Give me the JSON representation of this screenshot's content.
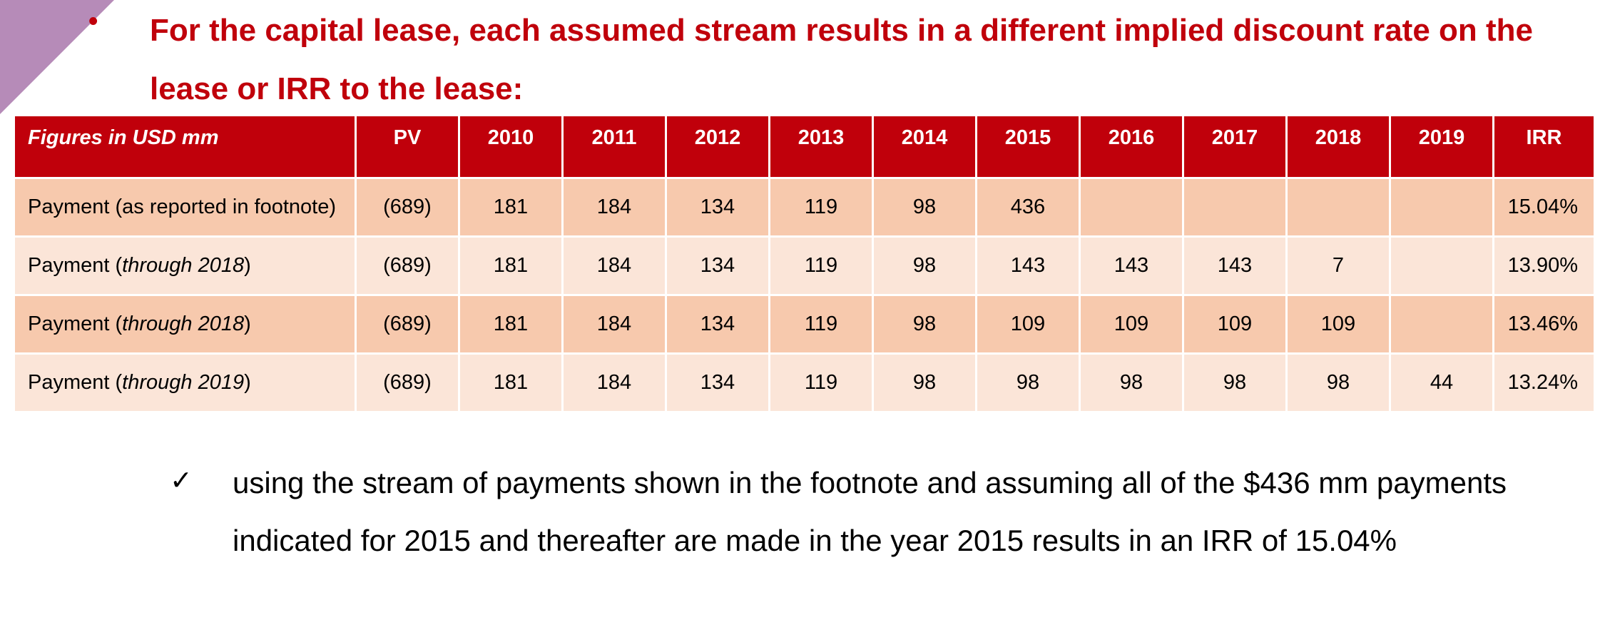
{
  "slide": {
    "bullet": "•",
    "heading": "For the capital lease, each assumed stream results in a different implied discount rate on the lease or IRR to the lease:",
    "accent_color": "#c0000b",
    "corner_color": "#b68bb8"
  },
  "table": {
    "headers": [
      "Figures in USD mm",
      "PV",
      "2010",
      "2011",
      "2012",
      "2013",
      "2014",
      "2015",
      "2016",
      "2017",
      "2018",
      "2019",
      "IRR"
    ],
    "rows": [
      {
        "label": "Payment (as reported in footnote)",
        "label_main": "Payment (as reported in footnote)",
        "label_italic": "",
        "label_close": "",
        "cells": [
          "(689)",
          "181",
          "184",
          "134",
          "119",
          "98",
          "436",
          "",
          "",
          "",
          "",
          "15.04%"
        ]
      },
      {
        "label": "Payment (through 2018)",
        "label_main": "Payment (",
        "label_italic": "through 2018",
        "label_close": ")",
        "cells": [
          "(689)",
          "181",
          "184",
          "134",
          "119",
          "98",
          "143",
          "143",
          "143",
          "7",
          "",
          "13.90%"
        ]
      },
      {
        "label": "Payment (through 2018)",
        "label_main": "Payment (",
        "label_italic": "through 2018",
        "label_close": ")",
        "cells": [
          "(689)",
          "181",
          "184",
          "134",
          "119",
          "98",
          "109",
          "109",
          "109",
          "109",
          "",
          "13.46%"
        ]
      },
      {
        "label": "Payment (through 2019)",
        "label_main": "Payment (",
        "label_italic": "through 2019",
        "label_close": ")",
        "cells": [
          "(689)",
          "181",
          "184",
          "134",
          "119",
          "98",
          "98",
          "98",
          "98",
          "98",
          "44",
          "13.24%"
        ]
      }
    ],
    "header_color": "#c0000b",
    "row_dark_color": "#f7c9ad",
    "row_light_color": "#fbe5d8"
  },
  "note": {
    "mark": "✓",
    "text": "using the stream of payments shown in the footnote and assuming all of the $436 mm payments indicated for 2015 and thereafter are made in the year 2015 results in an IRR of 15.04%"
  }
}
